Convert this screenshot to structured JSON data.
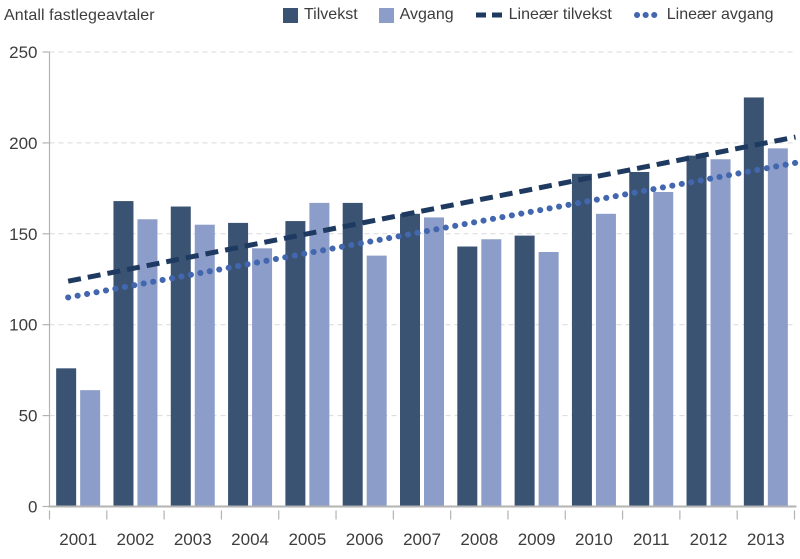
{
  "title": "Antall fastlegeavtaler",
  "legend": [
    {
      "label": "Tilvekst",
      "type": "square",
      "color": "#3b5373"
    },
    {
      "label": "Avgang",
      "type": "square",
      "color": "#8c9dca"
    },
    {
      "label": "Lineær tilvekst",
      "type": "dashed",
      "color": "#1e3a60"
    },
    {
      "label": "Lineær avgang",
      "type": "dotted",
      "color": "#4267ae"
    }
  ],
  "chart_data": {
    "type": "bar",
    "title": "Antall fastlegeavtaler",
    "categories": [
      "2001",
      "2002",
      "2003",
      "2004",
      "2005",
      "2006",
      "2007",
      "2008",
      "2009",
      "2010",
      "2011",
      "2012",
      "2013"
    ],
    "series": [
      {
        "name": "Tilvekst",
        "kind": "bar",
        "color": "#3b5373",
        "values": [
          76,
          168,
          165,
          156,
          157,
          167,
          161,
          143,
          149,
          183,
          184,
          193,
          225
        ]
      },
      {
        "name": "Avgang",
        "kind": "bar",
        "color": "#8c9dca",
        "values": [
          64,
          158,
          155,
          142,
          167,
          138,
          159,
          147,
          140,
          161,
          173,
          191,
          197
        ]
      },
      {
        "name": "Lineær tilvekst",
        "kind": "trendline",
        "style": "dashed",
        "color": "#1e3a60",
        "start": 125,
        "end": 200
      },
      {
        "name": "Lineær avgang",
        "kind": "trendline",
        "style": "dotted",
        "color": "#4267ae",
        "start": 116,
        "end": 186
      }
    ],
    "ylabel": "Antall fastlegeavtaler",
    "xlabel": "",
    "ylim": [
      0,
      250
    ],
    "yticks": [
      0,
      50,
      100,
      150,
      200,
      250
    ],
    "grid": "horizontal-dashed",
    "legend_position": "top",
    "colors": {
      "grid": "#d9d9d9",
      "axis": "#b3b3b3",
      "text": "#3d3d3d"
    }
  }
}
